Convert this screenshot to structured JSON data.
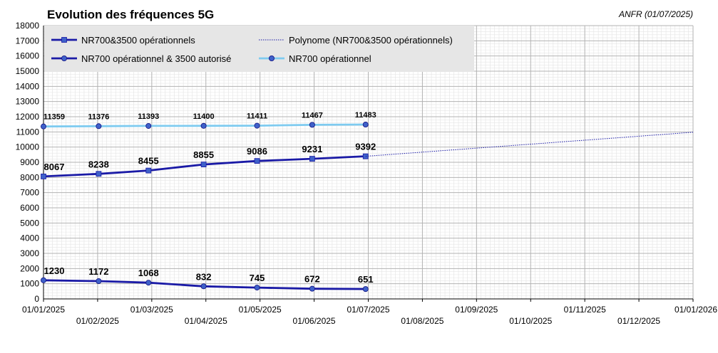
{
  "chart_data": {
    "type": "line",
    "title": "Evolution des fréquences 5G",
    "source_note": "ANFR (01/07/2025)",
    "xlabel": "",
    "ylabel": "",
    "ylim": [
      0,
      18000
    ],
    "y_ticks": [
      0,
      1000,
      2000,
      3000,
      4000,
      5000,
      6000,
      7000,
      8000,
      9000,
      10000,
      11000,
      12000,
      13000,
      14000,
      15000,
      16000,
      17000,
      18000
    ],
    "x_ticks": [
      "01/01/2025",
      "01/02/2025",
      "01/03/2025",
      "01/04/2025",
      "01/05/2025",
      "01/06/2025",
      "01/07/2025",
      "01/08/2025",
      "01/09/2025",
      "01/10/2025",
      "01/11/2025",
      "01/12/2025",
      "01/01/2026"
    ],
    "grid": true,
    "legend_position": "top-left",
    "x": [
      "01/01/2025",
      "01/02/2025",
      "01/03/2025",
      "01/04/2025",
      "01/05/2025",
      "01/06/2025",
      "01/07/2025"
    ],
    "series": [
      {
        "name": "NR700&3500 opérationnels",
        "color": "#1a1aa6",
        "marker": "square",
        "values": [
          8067,
          8238,
          8455,
          8855,
          9086,
          9231,
          9392
        ],
        "labels": [
          "8067",
          "8238",
          "8455",
          "8855",
          "9086",
          "9231",
          "9392"
        ]
      },
      {
        "name": "NR700 opérationnel & 3500 autorisé",
        "color": "#1a1aa6",
        "marker": "circle",
        "values": [
          1230,
          1172,
          1068,
          832,
          745,
          672,
          651
        ],
        "labels": [
          "1230",
          "1172",
          "1068",
          "832",
          "745",
          "672",
          "651"
        ]
      },
      {
        "name": "Polynome (NR700&3500 opérationnels)",
        "color": "#1a1aa6",
        "style": "dotted",
        "x": [
          "01/07/2025",
          "01/01/2026"
        ],
        "values": [
          9392,
          10980
        ]
      },
      {
        "name": "NR700 opérationnel",
        "color": "#7ecbf0",
        "marker": "circle",
        "values": [
          11359,
          11376,
          11393,
          11400,
          11411,
          11467,
          11483
        ],
        "labels": [
          "11359",
          "11376",
          "11393",
          "11400",
          "11411",
          "11467",
          "11483"
        ]
      }
    ]
  }
}
